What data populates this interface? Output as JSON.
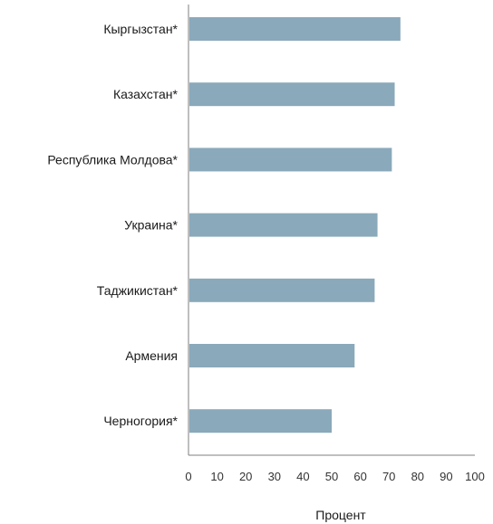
{
  "chart_data": {
    "type": "bar",
    "orientation": "horizontal",
    "categories": [
      "Кыргызстан*",
      "Казахстан*",
      "Республика Молдова*",
      "Украина*",
      "Таджикистан*",
      "Армения",
      "Черногория*"
    ],
    "values": [
      74,
      72,
      71,
      66,
      65,
      58,
      50
    ],
    "xlabel": "Процент",
    "ylabel": "",
    "xlim": [
      0,
      100
    ],
    "xticks": [
      0,
      10,
      20,
      30,
      40,
      50,
      60,
      70,
      80,
      90,
      100
    ],
    "grid": false,
    "bar_color": "#8aa9ba",
    "axis_color": "#7f7f7f"
  }
}
